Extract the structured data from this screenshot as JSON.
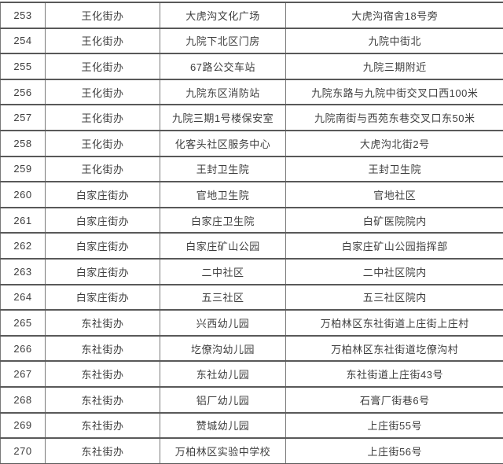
{
  "colors": {
    "background": "#ffffff",
    "grid_horizontal": "#595959",
    "grid_vertical": "#7a7a7a",
    "text": "#3e3e3e"
  },
  "table": {
    "rows": [
      {
        "no": "253",
        "office": "王化街办",
        "name": "大虎沟文化广场",
        "address": "大虎沟宿舍18号旁"
      },
      {
        "no": "254",
        "office": "王化街办",
        "name": "九院下北区门房",
        "address": "九院中街北"
      },
      {
        "no": "255",
        "office": "王化街办",
        "name": "67路公交车站",
        "address": "九院三期附近"
      },
      {
        "no": "256",
        "office": "王化街办",
        "name": "九院东区消防站",
        "address": "九院东路与九院中街交叉口西100米"
      },
      {
        "no": "257",
        "office": "王化街办",
        "name": "九院三期1号楼保安室",
        "address": "九院南街与西苑东巷交叉口东50米"
      },
      {
        "no": "258",
        "office": "王化街办",
        "name": "化客头社区服务中心",
        "address": "大虎沟北街2号"
      },
      {
        "no": "259",
        "office": "王化街办",
        "name": "王封卫生院",
        "address": "王封卫生院"
      },
      {
        "no": "260",
        "office": "白家庄街办",
        "name": "官地卫生院",
        "address": "官地社区"
      },
      {
        "no": "261",
        "office": "白家庄街办",
        "name": "白家庄卫生院",
        "address": "白矿医院院内"
      },
      {
        "no": "262",
        "office": "白家庄街办",
        "name": "白家庄矿山公园",
        "address": "白家庄矿山公园指挥部"
      },
      {
        "no": "263",
        "office": "白家庄街办",
        "name": "二中社区",
        "address": "二中社区院内"
      },
      {
        "no": "264",
        "office": "白家庄街办",
        "name": "五三社区",
        "address": "五三社区院内"
      },
      {
        "no": "265",
        "office": "东社街办",
        "name": "兴西幼儿园",
        "address": "万柏林区东社街道上庄街上庄村"
      },
      {
        "no": "266",
        "office": "东社街办",
        "name": "圪僚沟幼儿园",
        "address": "万柏林区东社街道圪僚沟村"
      },
      {
        "no": "267",
        "office": "东社街办",
        "name": "东社幼儿园",
        "address": "东社街道上庄街43号"
      },
      {
        "no": "268",
        "office": "东社街办",
        "name": "铝厂幼儿园",
        "address": "石膏厂街巷6号"
      },
      {
        "no": "269",
        "office": "东社街办",
        "name": "赞城幼儿园",
        "address": "上庄街55号"
      },
      {
        "no": "270",
        "office": "东社街办",
        "name": "万柏林区实验中学校",
        "address": "上庄街56号"
      }
    ]
  }
}
